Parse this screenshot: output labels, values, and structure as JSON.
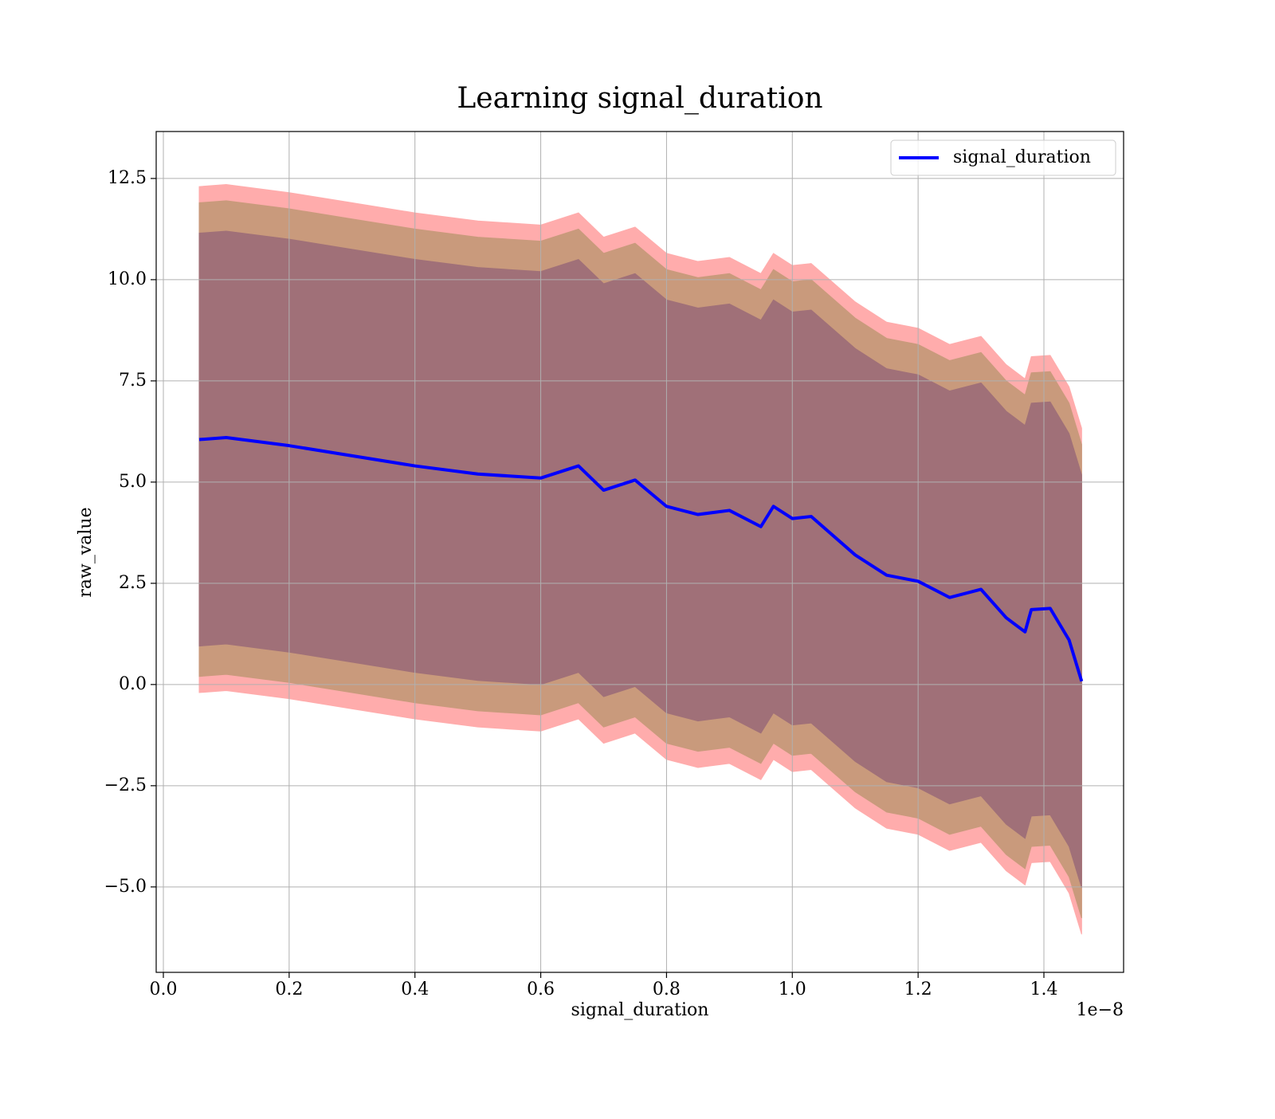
{
  "chart_data": {
    "type": "line",
    "title": "Learning signal_duration",
    "x_label": "signal_duration",
    "y_label": "raw_value",
    "x_offset_label": "1e−8",
    "x": [
      0.057,
      0.1,
      0.2,
      0.3,
      0.4,
      0.5,
      0.6,
      0.66,
      0.7,
      0.75,
      0.8,
      0.85,
      0.9,
      0.95,
      0.97,
      1.0,
      1.03,
      1.1,
      1.15,
      1.2,
      1.25,
      1.3,
      1.34,
      1.37,
      1.38,
      1.41,
      1.44,
      1.46
    ],
    "series": [
      {
        "name": "signal_duration",
        "color": "#0000ff",
        "values": [
          6.05,
          6.1,
          5.9,
          5.65,
          5.4,
          5.2,
          5.1,
          5.4,
          4.8,
          5.05,
          4.4,
          4.2,
          4.3,
          3.9,
          4.4,
          4.1,
          4.15,
          3.2,
          2.7,
          2.55,
          2.15,
          2.35,
          1.65,
          1.3,
          1.85,
          1.88,
          1.1,
          0.08
        ]
      }
    ],
    "bands": [
      {
        "color": "#ffacac",
        "upper": [
          12.3,
          12.35,
          12.15,
          11.9,
          11.65,
          11.45,
          11.35,
          11.65,
          11.05,
          11.3,
          10.65,
          10.45,
          10.55,
          10.15,
          10.65,
          10.35,
          10.4,
          9.45,
          8.95,
          8.8,
          8.4,
          8.6,
          7.9,
          7.55,
          8.1,
          8.13,
          7.35,
          6.33
        ],
        "lower": [
          -0.2,
          -0.15,
          -0.35,
          -0.6,
          -0.85,
          -1.05,
          -1.15,
          -0.85,
          -1.45,
          -1.2,
          -1.85,
          -2.05,
          -1.95,
          -2.35,
          -1.85,
          -2.15,
          -2.1,
          -3.05,
          -3.55,
          -3.7,
          -4.1,
          -3.9,
          -4.6,
          -4.95,
          -4.4,
          -4.37,
          -5.15,
          -6.17
        ]
      },
      {
        "color": "#c99a7c",
        "upper": [
          11.9,
          11.95,
          11.75,
          11.5,
          11.25,
          11.05,
          10.95,
          11.25,
          10.65,
          10.9,
          10.25,
          10.05,
          10.15,
          9.75,
          10.25,
          9.95,
          10.0,
          9.05,
          8.55,
          8.4,
          8.0,
          8.2,
          7.5,
          7.15,
          7.7,
          7.73,
          6.95,
          5.93
        ],
        "lower": [
          0.2,
          0.25,
          0.05,
          -0.2,
          -0.45,
          -0.65,
          -0.75,
          -0.45,
          -1.05,
          -0.8,
          -1.45,
          -1.65,
          -1.55,
          -1.95,
          -1.45,
          -1.75,
          -1.7,
          -2.65,
          -3.15,
          -3.3,
          -3.7,
          -3.5,
          -4.2,
          -4.55,
          -4.0,
          -3.97,
          -4.75,
          -5.77
        ]
      },
      {
        "color": "#a07078",
        "upper": [
          11.15,
          11.2,
          11.0,
          10.75,
          10.5,
          10.3,
          10.2,
          10.5,
          9.9,
          10.15,
          9.5,
          9.3,
          9.4,
          9.0,
          9.5,
          9.2,
          9.25,
          8.3,
          7.8,
          7.65,
          7.25,
          7.45,
          6.75,
          6.4,
          6.95,
          6.98,
          6.2,
          5.18
        ],
        "lower": [
          0.95,
          1.0,
          0.8,
          0.55,
          0.3,
          0.1,
          0.0,
          0.3,
          -0.3,
          -0.05,
          -0.7,
          -0.9,
          -0.8,
          -1.2,
          -0.7,
          -1.0,
          -0.95,
          -1.9,
          -2.4,
          -2.55,
          -2.95,
          -2.75,
          -3.45,
          -3.8,
          -3.25,
          -3.22,
          -4.0,
          -5.02
        ]
      }
    ],
    "xlim": [
      -0.0114,
      1.5267
    ],
    "ylim": [
      -7.11,
      13.66
    ],
    "xticks": [
      {
        "value": 0,
        "label": "0.0"
      },
      {
        "value": 0.2,
        "label": "0.2"
      },
      {
        "value": 0.4,
        "label": "0.4"
      },
      {
        "value": 0.6,
        "label": "0.6"
      },
      {
        "value": 0.8,
        "label": "0.8"
      },
      {
        "value": 1.0,
        "label": "1.0"
      },
      {
        "value": 1.2,
        "label": "1.2"
      },
      {
        "value": 1.4,
        "label": "1.4"
      }
    ],
    "yticks": [
      {
        "value": -5,
        "label": "−5.0"
      },
      {
        "value": -2.5,
        "label": "−2.5"
      },
      {
        "value": 0,
        "label": "0.0"
      },
      2.5,
      {
        "value": 5,
        "label": "5.0"
      },
      7.5,
      {
        "value": 10,
        "label": "10.0"
      },
      12.5
    ],
    "grid": true,
    "legend": "upper right"
  }
}
